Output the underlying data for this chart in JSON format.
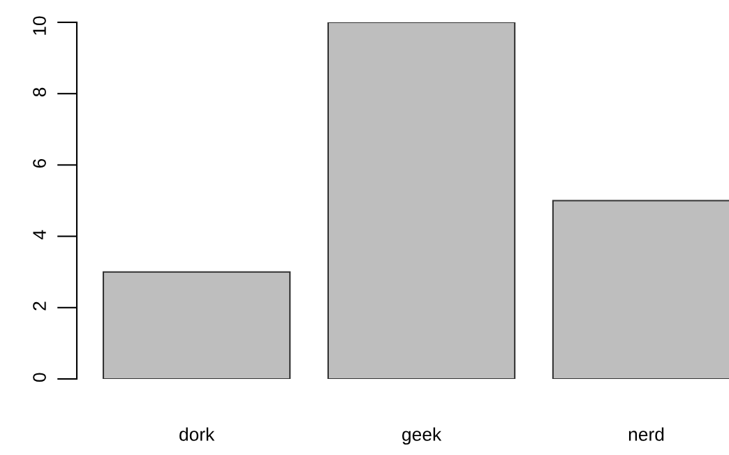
{
  "chart_data": {
    "type": "bar",
    "categories": [
      "dork",
      "geek",
      "nerd"
    ],
    "values": [
      3,
      10,
      5
    ],
    "color": "#bebebe",
    "ylim": [
      0,
      10
    ],
    "yticks": [
      0,
      2,
      4,
      6,
      8,
      10
    ],
    "grid": false,
    "legend": false
  }
}
